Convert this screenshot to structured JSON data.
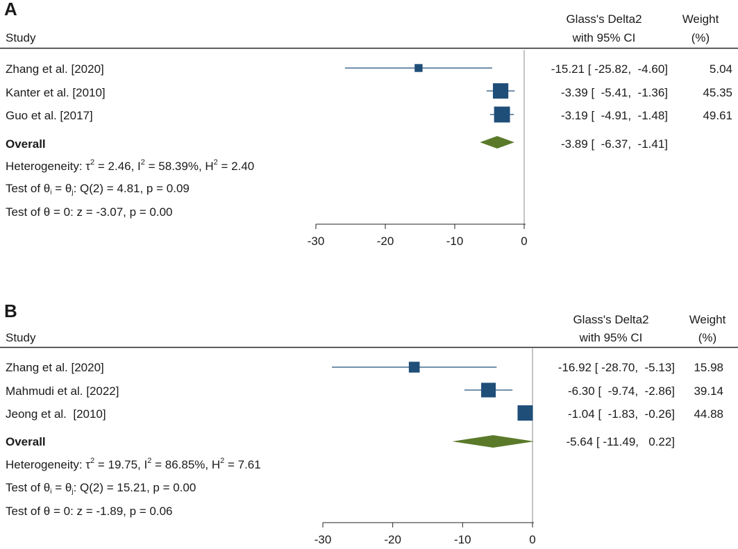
{
  "chart_data": [
    {
      "type": "forest",
      "panel": "A",
      "headers": {
        "study": "Study",
        "effect_line1": "Glass's Delta2",
        "effect_line2": "with 95% CI",
        "weight_line1": "Weight",
        "weight_line2": "(%)"
      },
      "studies": [
        {
          "label": "Zhang et al. [2020]",
          "estimate": -15.21,
          "lower": -25.82,
          "upper": -4.6,
          "ci_text": "-15.21 [ -25.82,  -4.60]",
          "weight": 5.04,
          "weight_text": "5.04"
        },
        {
          "label": "Kanter et al. [2010]",
          "estimate": -3.39,
          "lower": -5.41,
          "upper": -1.36,
          "ci_text": "-3.39 [  -5.41,  -1.36]",
          "weight": 45.35,
          "weight_text": "45.35"
        },
        {
          "label": "Guo et al. [2017]",
          "estimate": -3.19,
          "lower": -4.91,
          "upper": -1.48,
          "ci_text": "-3.19 [  -4.91,  -1.48]",
          "weight": 49.61,
          "weight_text": "49.61"
        }
      ],
      "overall": {
        "label": "Overall",
        "estimate": -3.89,
        "lower": -6.37,
        "upper": -1.41,
        "ci_text": "-3.89 [  -6.37,  -1.41]"
      },
      "stats": {
        "het_prefix": "Heterogeneity: τ",
        "tau2_val": " = 2.46, I",
        "i2_val": " = 58.39%, H",
        "h2_val": " = 2.40",
        "sup2": "2",
        "test1_prefix": "Test of θ",
        "test1_sub_i": "i",
        "test1_mid": " = θ",
        "test1_sub_j": "j",
        "test1_suffix": ": Q(2) = 4.81, p = 0.09",
        "test2": "Test of θ = 0: z = -3.07, p = 0.00"
      },
      "axis": {
        "min": -30,
        "max": 0,
        "ticks": [
          -30,
          -20,
          -10,
          0
        ],
        "tick_labels": [
          "-30",
          "-20",
          "-10",
          "0"
        ]
      },
      "colors": {
        "marker": "#1f4e79",
        "ci": "#1f4e79",
        "diamond": "#5a7a2a",
        "refline": "#888888"
      }
    },
    {
      "type": "forest",
      "panel": "B",
      "headers": {
        "study": "Study",
        "effect_line1": "Glass's Delta2",
        "effect_line2": "with 95% CI",
        "weight_line1": "Weight",
        "weight_line2": "(%)"
      },
      "studies": [
        {
          "label": "Zhang et al. [2020]",
          "estimate": -16.92,
          "lower": -28.7,
          "upper": -5.13,
          "ci_text": "-16.92 [ -28.70,  -5.13]",
          "weight": 15.98,
          "weight_text": "15.98"
        },
        {
          "label": "Mahmudi et al. [2022]",
          "estimate": -6.3,
          "lower": -9.74,
          "upper": -2.86,
          "ci_text": "-6.30 [  -9.74,  -2.86]",
          "weight": 39.14,
          "weight_text": "39.14"
        },
        {
          "label": "Jeong et al.  [2010]",
          "estimate": -1.04,
          "lower": -1.83,
          "upper": -0.26,
          "ci_text": "-1.04 [  -1.83,  -0.26]",
          "weight": 44.88,
          "weight_text": "44.88"
        }
      ],
      "overall": {
        "label": "Overall",
        "estimate": -5.64,
        "lower": -11.49,
        "upper": 0.22,
        "ci_text": "-5.64 [ -11.49,   0.22]"
      },
      "stats": {
        "het_prefix": "Heterogeneity: τ",
        "tau2_val": " = 19.75, I",
        "i2_val": " = 86.85%, H",
        "h2_val": " = 7.61",
        "sup2": "2",
        "test1_prefix": "Test of θ",
        "test1_sub_i": "i",
        "test1_mid": " = θ",
        "test1_sub_j": "j",
        "test1_suffix": ": Q(2) = 15.21, p = 0.00",
        "test2": "Test of θ = 0: z = -1.89, p = 0.06"
      },
      "axis": {
        "min": -30,
        "max": 0,
        "ticks": [
          -30,
          -20,
          -10,
          0
        ],
        "tick_labels": [
          "-30",
          "-20",
          "-10",
          "0"
        ]
      },
      "colors": {
        "marker": "#1f4e79",
        "ci": "#1f4e79",
        "diamond": "#5a7a2a",
        "refline": "#888888"
      }
    }
  ]
}
